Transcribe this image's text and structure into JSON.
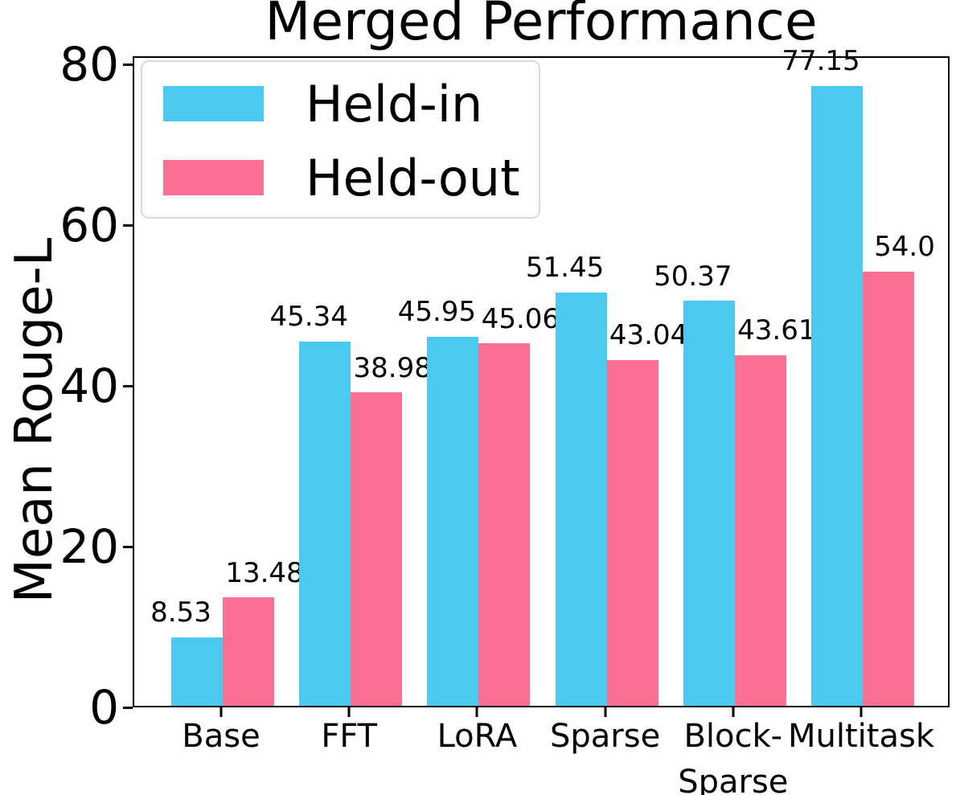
{
  "chart_data": {
    "type": "bar",
    "title": "Merged Performance",
    "ylabel": "Mean Rouge-L",
    "xlabel": "",
    "categories": [
      "Base",
      "FFT",
      "LoRA",
      "Sparse",
      "Block-\nSparse",
      "Multitask"
    ],
    "series": [
      {
        "name": "Held-in",
        "color": "#4CC9F0",
        "values": [
          8.53,
          45.34,
          45.95,
          51.45,
          50.37,
          77.15
        ],
        "labels": [
          "8.53",
          "45.34",
          "45.95",
          "51.45",
          "50.37",
          "77.15"
        ]
      },
      {
        "name": "Held-out",
        "color": "#FB6F92",
        "values": [
          13.48,
          38.98,
          45.06,
          43.04,
          43.61,
          54.0
        ],
        "labels": [
          "13.48",
          "38.98",
          "45.06",
          "43.04",
          "43.61",
          "54.0"
        ]
      }
    ],
    "y_ticks": [
      0,
      20,
      40,
      60,
      80
    ],
    "ylim": [
      0,
      81
    ],
    "grid": false,
    "legend_position": "upper left",
    "colors": {
      "held_in": "#4CC9F0",
      "held_out": "#FB6F92",
      "axis": "#000000",
      "legend_border": "#d9d9d9",
      "background": "#ffffff"
    }
  }
}
